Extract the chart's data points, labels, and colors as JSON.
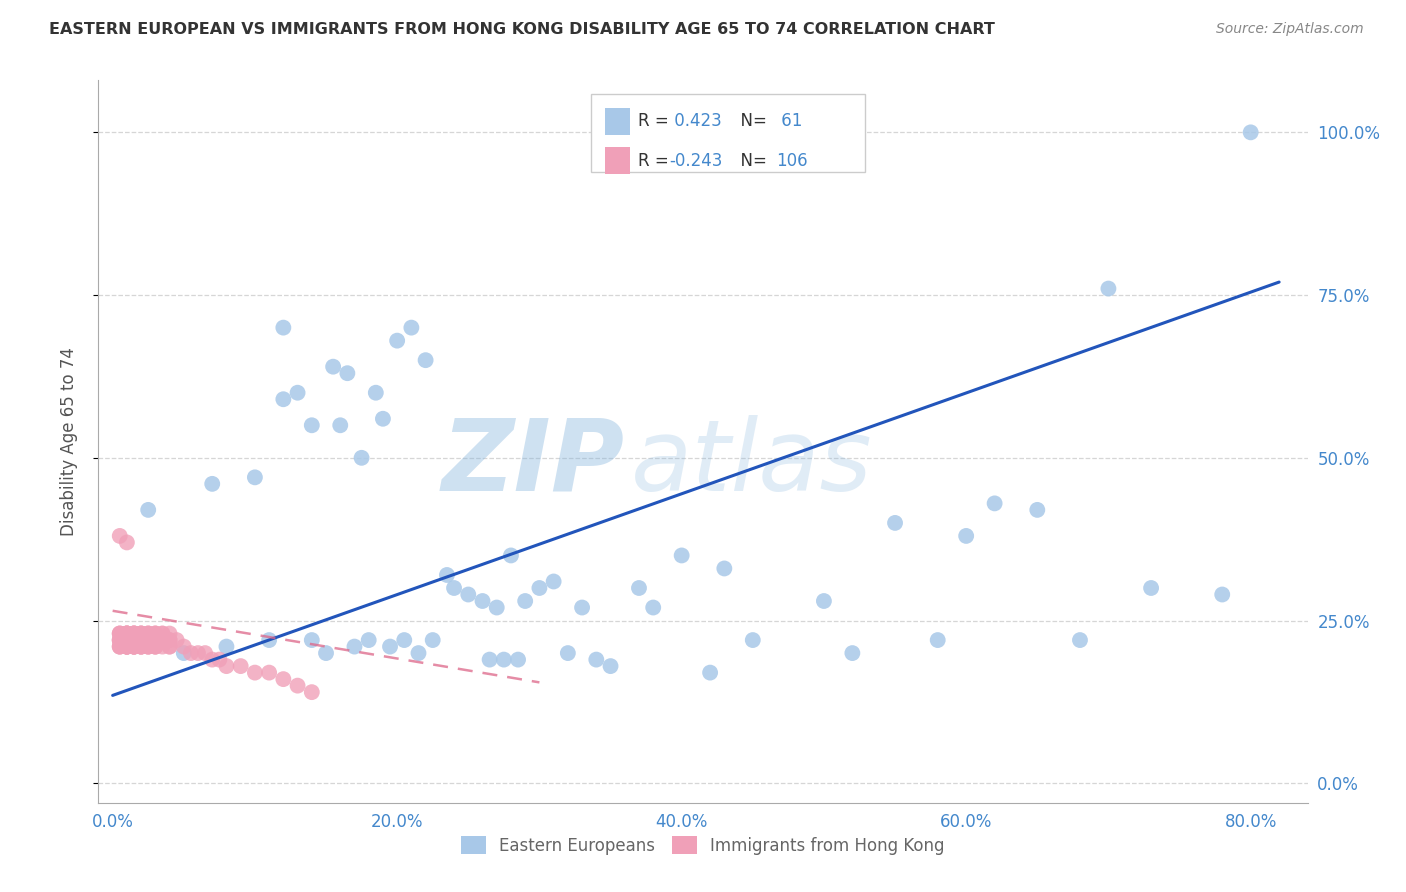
{
  "title": "EASTERN EUROPEAN VS IMMIGRANTS FROM HONG KONG DISABILITY AGE 65 TO 74 CORRELATION CHART",
  "source": "Source: ZipAtlas.com",
  "ylabel": "Disability Age 65 to 74",
  "r_blue": 0.423,
  "n_blue": 61,
  "r_pink": -0.243,
  "n_pink": 106,
  "blue_color": "#a8c8e8",
  "pink_color": "#f0a0b8",
  "blue_line_color": "#2255bb",
  "pink_line_color": "#dd6688",
  "watermark_zip": "ZIP",
  "watermark_atlas": "atlas",
  "legend_label_blue": "Eastern Europeans",
  "legend_label_pink": "Immigrants from Hong Kong",
  "blue_x": [
    0.025,
    0.05,
    0.07,
    0.08,
    0.1,
    0.11,
    0.12,
    0.12,
    0.13,
    0.14,
    0.14,
    0.15,
    0.155,
    0.16,
    0.165,
    0.17,
    0.175,
    0.18,
    0.185,
    0.19,
    0.195,
    0.2,
    0.205,
    0.21,
    0.215,
    0.22,
    0.225,
    0.235,
    0.24,
    0.25,
    0.26,
    0.265,
    0.27,
    0.275,
    0.28,
    0.285,
    0.29,
    0.3,
    0.31,
    0.32,
    0.33,
    0.34,
    0.35,
    0.37,
    0.38,
    0.4,
    0.42,
    0.43,
    0.45,
    0.5,
    0.52,
    0.55,
    0.58,
    0.6,
    0.62,
    0.65,
    0.68,
    0.7,
    0.73,
    0.78,
    0.8
  ],
  "blue_y": [
    0.42,
    0.2,
    0.46,
    0.21,
    0.47,
    0.22,
    0.59,
    0.7,
    0.6,
    0.22,
    0.55,
    0.2,
    0.64,
    0.55,
    0.63,
    0.21,
    0.5,
    0.22,
    0.6,
    0.56,
    0.21,
    0.68,
    0.22,
    0.7,
    0.2,
    0.65,
    0.22,
    0.32,
    0.3,
    0.29,
    0.28,
    0.19,
    0.27,
    0.19,
    0.35,
    0.19,
    0.28,
    0.3,
    0.31,
    0.2,
    0.27,
    0.19,
    0.18,
    0.3,
    0.27,
    0.35,
    0.17,
    0.33,
    0.22,
    0.28,
    0.2,
    0.4,
    0.22,
    0.38,
    0.43,
    0.42,
    0.22,
    0.76,
    0.3,
    0.29,
    1.0
  ],
  "pink_x": [
    0.005,
    0.005,
    0.005,
    0.005,
    0.005,
    0.005,
    0.005,
    0.005,
    0.005,
    0.005,
    0.01,
    0.01,
    0.01,
    0.01,
    0.01,
    0.01,
    0.01,
    0.01,
    0.01,
    0.01,
    0.01,
    0.01,
    0.01,
    0.01,
    0.01,
    0.01,
    0.01,
    0.01,
    0.01,
    0.01,
    0.015,
    0.015,
    0.015,
    0.015,
    0.015,
    0.015,
    0.015,
    0.015,
    0.015,
    0.015,
    0.015,
    0.015,
    0.015,
    0.015,
    0.015,
    0.02,
    0.02,
    0.02,
    0.02,
    0.02,
    0.02,
    0.02,
    0.02,
    0.02,
    0.02,
    0.02,
    0.02,
    0.02,
    0.025,
    0.025,
    0.025,
    0.025,
    0.025,
    0.025,
    0.025,
    0.025,
    0.025,
    0.025,
    0.025,
    0.025,
    0.03,
    0.03,
    0.03,
    0.03,
    0.03,
    0.03,
    0.03,
    0.03,
    0.03,
    0.03,
    0.035,
    0.035,
    0.035,
    0.035,
    0.035,
    0.04,
    0.04,
    0.04,
    0.04,
    0.04,
    0.045,
    0.05,
    0.055,
    0.06,
    0.065,
    0.07,
    0.075,
    0.08,
    0.09,
    0.1,
    0.11,
    0.12,
    0.13,
    0.14,
    0.005,
    0.01
  ],
  "pink_y": [
    0.22,
    0.23,
    0.21,
    0.22,
    0.23,
    0.21,
    0.22,
    0.23,
    0.21,
    0.22,
    0.23,
    0.22,
    0.21,
    0.23,
    0.22,
    0.21,
    0.23,
    0.22,
    0.21,
    0.22,
    0.23,
    0.21,
    0.22,
    0.23,
    0.22,
    0.21,
    0.22,
    0.23,
    0.21,
    0.22,
    0.22,
    0.23,
    0.21,
    0.22,
    0.23,
    0.21,
    0.22,
    0.23,
    0.21,
    0.22,
    0.23,
    0.21,
    0.22,
    0.23,
    0.21,
    0.22,
    0.23,
    0.22,
    0.21,
    0.23,
    0.22,
    0.21,
    0.22,
    0.23,
    0.21,
    0.22,
    0.23,
    0.21,
    0.22,
    0.23,
    0.22,
    0.21,
    0.23,
    0.22,
    0.21,
    0.22,
    0.23,
    0.22,
    0.21,
    0.22,
    0.23,
    0.22,
    0.21,
    0.22,
    0.23,
    0.21,
    0.22,
    0.23,
    0.22,
    0.21,
    0.22,
    0.23,
    0.21,
    0.22,
    0.23,
    0.22,
    0.21,
    0.22,
    0.23,
    0.21,
    0.22,
    0.21,
    0.2,
    0.2,
    0.2,
    0.19,
    0.19,
    0.18,
    0.18,
    0.17,
    0.17,
    0.16,
    0.15,
    0.14,
    0.38,
    0.37
  ],
  "blue_trend_x0": 0.0,
  "blue_trend_y0": 0.135,
  "blue_trend_x1": 0.82,
  "blue_trend_y1": 0.77,
  "pink_trend_x0": 0.0,
  "pink_trend_y0": 0.265,
  "pink_trend_x1": 0.3,
  "pink_trend_y1": 0.155,
  "xlim_lo": -0.01,
  "xlim_hi": 0.84,
  "ylim_lo": -0.03,
  "ylim_hi": 1.08,
  "xtick_vals": [
    0.0,
    0.2,
    0.4,
    0.6,
    0.8
  ],
  "ytick_vals": [
    0.0,
    0.25,
    0.5,
    0.75,
    1.0
  ]
}
